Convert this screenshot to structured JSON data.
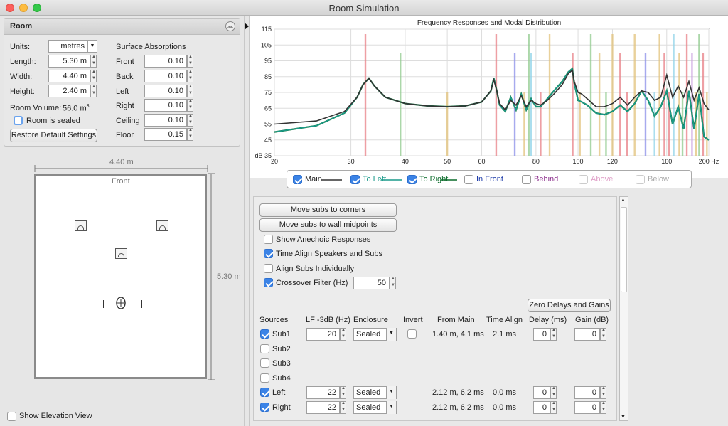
{
  "window": {
    "title": "Room Simulation"
  },
  "room_panel": {
    "title": "Room",
    "units_label": "Units:",
    "units_value": "metres",
    "length_label": "Length:",
    "length_value": "5.30 m",
    "width_label": "Width:",
    "width_value": "4.40 m",
    "height_label": "Height:",
    "height_value": "2.40 m",
    "volume_label": "Room Volume:",
    "volume_value": "56.0 m",
    "volume_sup": "3",
    "sealed_label": "Room is sealed",
    "restore_label": "Restore Default Settings",
    "surface_title": "Surface Absorptions",
    "surfaces": [
      {
        "label": "Front",
        "value": "0.10"
      },
      {
        "label": "Back",
        "value": "0.10"
      },
      {
        "label": "Left",
        "value": "0.10"
      },
      {
        "label": "Right",
        "value": "0.10"
      },
      {
        "label": "Ceiling",
        "value": "0.10"
      },
      {
        "label": "Floor",
        "value": "0.15"
      }
    ]
  },
  "room_view": {
    "width_dim": "4.40 m",
    "length_dim": "5.30 m",
    "front_label": "Front",
    "elevation_label": "Show Elevation View"
  },
  "chart_data": {
    "type": "line",
    "title": "Frequency Responses and Modal Distribution",
    "ylabel": "dB",
    "xunit": "Hz",
    "x_scale": "log",
    "xlim": [
      20,
      200
    ],
    "ylim": [
      35,
      115
    ],
    "x_ticks": [
      "20",
      "30",
      "40",
      "50",
      "60",
      "80",
      "100",
      "120",
      "160",
      "200 Hz"
    ],
    "x_tick_values": [
      20,
      30,
      40,
      50,
      60,
      80,
      100,
      120,
      160,
      200
    ],
    "y_ticks": [
      35,
      45,
      55,
      65,
      75,
      85,
      95,
      105,
      115
    ],
    "y_tick_labels": [
      "dB 35",
      "45",
      "55",
      "65",
      "75",
      "85",
      "95",
      "105",
      "115"
    ],
    "grid": true,
    "series": [
      {
        "name": "Main",
        "color": "#333333",
        "x": [
          20,
          25,
          29,
          31,
          32,
          33,
          34,
          36,
          40,
          45,
          50,
          55,
          60,
          63,
          64,
          65,
          66,
          68,
          70,
          72,
          74,
          76,
          78,
          80,
          82,
          85,
          88,
          92,
          95,
          97,
          98,
          100,
          102,
          105,
          110,
          115,
          120,
          125,
          130,
          135,
          140,
          145,
          150,
          155,
          160,
          165,
          170,
          175,
          180,
          185,
          190,
          195,
          200
        ],
        "y": [
          55,
          57,
          63,
          72,
          80,
          84,
          79,
          72,
          68,
          66.5,
          66,
          66.5,
          69,
          76,
          83,
          76,
          68,
          64,
          70,
          67,
          73,
          66,
          70,
          68,
          67,
          70,
          74,
          80,
          87,
          89,
          82,
          75,
          74,
          71,
          66,
          66,
          68,
          72,
          67,
          72,
          76,
          75,
          70,
          72,
          86,
          72,
          79,
          72,
          82,
          70,
          78,
          68,
          64
        ]
      },
      {
        "name": "To Left",
        "color": "#1a9a8a",
        "x": [
          20,
          25,
          29,
          31,
          32,
          33,
          34,
          36,
          40,
          45,
          50,
          55,
          60,
          63,
          64,
          65,
          66,
          68,
          70,
          72,
          74,
          76,
          78,
          80,
          82,
          85,
          88,
          92,
          95,
          97,
          98,
          100,
          102,
          105,
          110,
          115,
          120,
          125,
          130,
          135,
          140,
          145,
          150,
          155,
          160,
          165,
          170,
          175,
          180,
          185,
          190,
          195,
          200
        ],
        "y": [
          50,
          54,
          62,
          72,
          80,
          84,
          79,
          72,
          68,
          66.5,
          66,
          66.5,
          69,
          76,
          84,
          76,
          67,
          63,
          72,
          64,
          74,
          64,
          71,
          66,
          66,
          71,
          76,
          82,
          88,
          90,
          81,
          70,
          69,
          67,
          62,
          61,
          63,
          67,
          63,
          68,
          76,
          70,
          60,
          66,
          76,
          55,
          66,
          52,
          76,
          52,
          74,
          47,
          45
        ]
      },
      {
        "name": "To Right",
        "color": "#0a6b2a",
        "x": [
          20,
          25,
          29,
          31,
          32,
          33,
          34,
          36,
          40,
          45,
          50,
          55,
          60,
          63,
          64,
          65,
          66,
          68,
          70,
          72,
          74,
          76,
          78,
          80,
          82,
          85,
          88,
          92,
          95,
          97,
          98,
          100,
          102,
          105,
          110,
          115,
          120,
          125,
          130,
          135,
          140,
          145,
          150,
          155,
          160,
          165,
          170,
          175,
          180,
          185,
          190,
          195,
          200
        ],
        "y": [
          50,
          54,
          62,
          72,
          80,
          84,
          79,
          72,
          68,
          66.5,
          66,
          66.5,
          69,
          76,
          84,
          76,
          67,
          63,
          72,
          64,
          74,
          64,
          71,
          66,
          66,
          71,
          76,
          82,
          88,
          90,
          81,
          70,
          69,
          67,
          62,
          61,
          63,
          67,
          63,
          68,
          76,
          70,
          60,
          66,
          76,
          55,
          66,
          52,
          76,
          52,
          74,
          47,
          45
        ]
      }
    ],
    "modes": [
      {
        "x": 32.4,
        "color": "#e87f86"
      },
      {
        "x": 39,
        "color": "#8fc98c"
      },
      {
        "x": 50,
        "color": "#e2c27a"
      },
      {
        "x": 64.8,
        "color": "#e87f86"
      },
      {
        "x": 71.5,
        "color": "#8a8ee8"
      },
      {
        "x": 75.2,
        "color": "#e2c27a"
      },
      {
        "x": 77,
        "color": "#8fc98c"
      },
      {
        "x": 78,
        "color": "#8fd3e8"
      },
      {
        "x": 82,
        "color": "#e87f86"
      },
      {
        "x": 86,
        "color": "#e2c27a"
      },
      {
        "x": 97.2,
        "color": "#e87f86"
      },
      {
        "x": 101,
        "color": "#e2c27a"
      },
      {
        "x": 107,
        "color": "#8fc98c"
      },
      {
        "x": 112,
        "color": "#e2c27a"
      },
      {
        "x": 116,
        "color": "#8fc98c"
      },
      {
        "x": 120,
        "color": "#e2c27a"
      },
      {
        "x": 125,
        "color": "#e87f86"
      },
      {
        "x": 129.6,
        "color": "#e87f86"
      },
      {
        "x": 135,
        "color": "#e2c27a"
      },
      {
        "x": 143,
        "color": "#8a8ee8"
      },
      {
        "x": 150,
        "color": "#8fd3e8"
      },
      {
        "x": 154,
        "color": "#e2c27a"
      },
      {
        "x": 158,
        "color": "#e87f86"
      },
      {
        "x": 162,
        "color": "#e87f86"
      },
      {
        "x": 166,
        "color": "#8fd3e8"
      },
      {
        "x": 171,
        "color": "#e2c27a"
      },
      {
        "x": 174,
        "color": "#8fc98c"
      },
      {
        "x": 178,
        "color": "#e87f86"
      },
      {
        "x": 183,
        "color": "#c8a0e0"
      },
      {
        "x": 187,
        "color": "#e2c27a"
      },
      {
        "x": 190,
        "color": "#8fc98c"
      },
      {
        "x": 194,
        "color": "#e87f86"
      },
      {
        "x": 198,
        "color": "#e2c27a"
      }
    ]
  },
  "legend": [
    {
      "label": "Main",
      "checked": true,
      "color": "#333333"
    },
    {
      "label": "To Left",
      "checked": true,
      "color": "#1a9a8a"
    },
    {
      "label": "To Right",
      "checked": true,
      "color": "#0a6b2a"
    },
    {
      "label": "In Front",
      "checked": false,
      "color": "#1c3aa8"
    },
    {
      "label": "Behind",
      "checked": false,
      "color": "#8a2a8a"
    },
    {
      "label": "Above",
      "checked": false,
      "color": "#e0a0c8"
    },
    {
      "label": "Below",
      "checked": false,
      "color": "#aaaaaa"
    }
  ],
  "controls": {
    "move_corners": "Move subs to corners",
    "move_midpoints": "Move subs to wall midpoints",
    "show_anechoic": "Show Anechoic Responses",
    "time_align": "Time Align Speakers and Subs",
    "align_individually": "Align Subs Individually",
    "crossover_label": "Crossover Filter (Hz)",
    "crossover_value": "50",
    "zero_delays": "Zero Delays and Gains"
  },
  "sources_table": {
    "headers": [
      "Sources",
      "LF -3dB (Hz)",
      "Enclosure",
      "Invert",
      "From Main",
      "Time Align",
      "Delay (ms)",
      "Gain (dB)"
    ],
    "rows": [
      {
        "name": "Sub1",
        "checked": true,
        "lf": "20",
        "enclosure": "Sealed",
        "from_main": "1.40 m, 4.1 ms",
        "time_align": "2.1 ms",
        "delay": "0",
        "gain": "0"
      },
      {
        "name": "Sub2",
        "checked": false
      },
      {
        "name": "Sub3",
        "checked": false
      },
      {
        "name": "Sub4",
        "checked": false
      },
      {
        "name": "Left",
        "checked": true,
        "lf": "22",
        "enclosure": "Sealed",
        "from_main": "2.12 m, 6.2 ms",
        "time_align": "0.0 ms",
        "delay": "0",
        "gain": "0"
      },
      {
        "name": "Right",
        "checked": true,
        "lf": "22",
        "enclosure": "Sealed",
        "from_main": "2.12 m, 6.2 ms",
        "time_align": "0.0 ms",
        "delay": "0",
        "gain": "0"
      }
    ]
  }
}
